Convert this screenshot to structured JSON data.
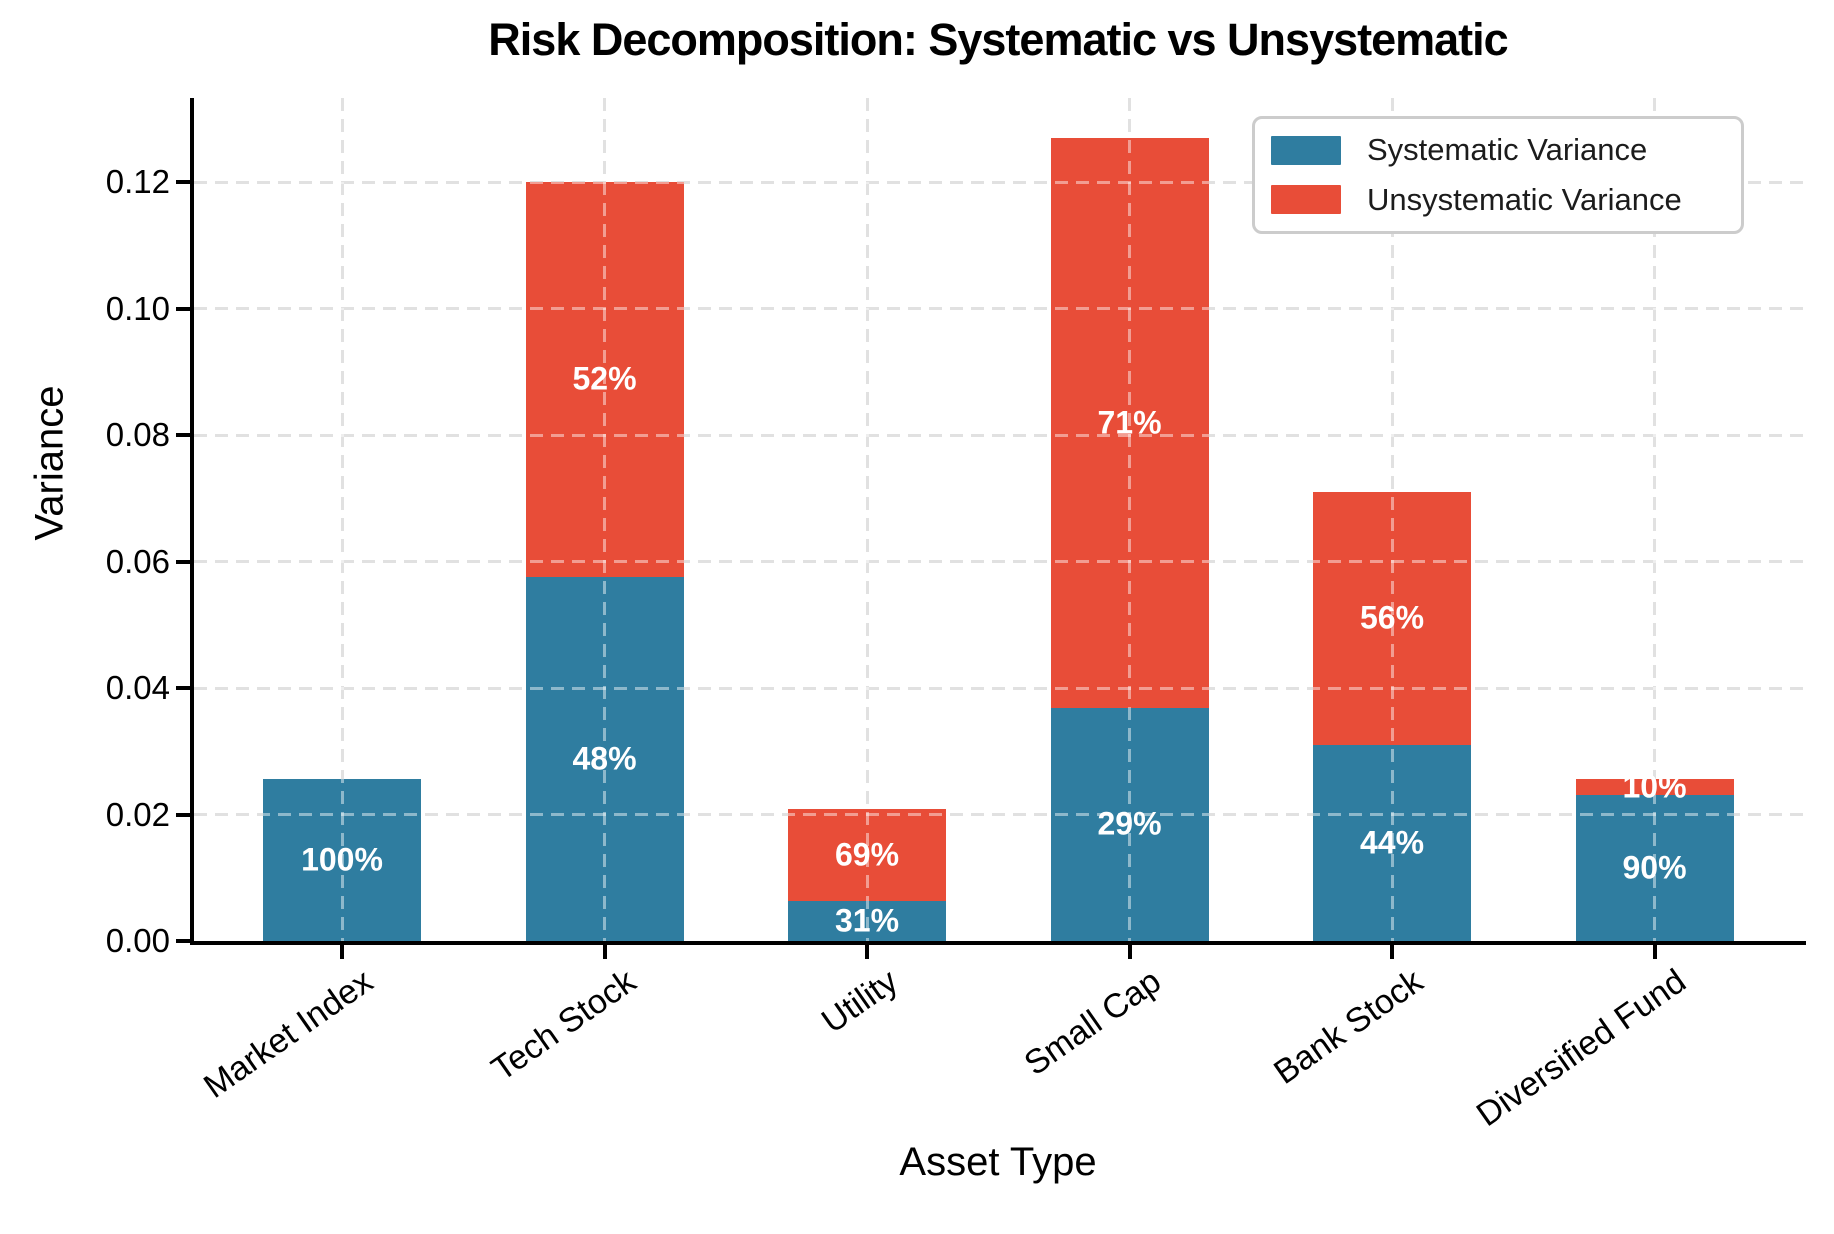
{
  "chart_data": {
    "type": "bar",
    "stacked": true,
    "title": "Risk Decomposition: Systematic vs Unsystematic",
    "xlabel": "Asset Type",
    "ylabel": "Variance",
    "categories": [
      "Market Index",
      "Tech Stock",
      "Utility",
      "Small Cap",
      "Bank Stock",
      "Diversified Fund"
    ],
    "series": [
      {
        "name": "Systematic Variance",
        "color": "#2F7DA0",
        "values": [
          0.0256,
          0.0576,
          0.0064,
          0.0369,
          0.031,
          0.0231
        ],
        "segment_labels": [
          "100%",
          "48%",
          "31%",
          "29%",
          "44%",
          "90%"
        ]
      },
      {
        "name": "Unsystematic Variance",
        "color": "#E84D38",
        "values": [
          0,
          0.0624,
          0.0144,
          0.09,
          0.04,
          0.0025
        ],
        "segment_labels": [
          "",
          "52%",
          "69%",
          "71%",
          "56%",
          "10%"
        ]
      }
    ],
    "yticks": {
      "values": [
        0,
        0.02,
        0.04,
        0.06,
        0.08,
        0.1,
        0.12
      ],
      "labels": [
        "0.00",
        "0.02",
        "0.04",
        "0.06",
        "0.08",
        "0.10",
        "0.12"
      ]
    },
    "ylim": [
      0,
      0.1333
    ],
    "grid": {
      "style": "dashed",
      "color": "#c9c9c9"
    },
    "legend": {
      "position": "upper right"
    },
    "segment_label_color": "#ffffff"
  }
}
